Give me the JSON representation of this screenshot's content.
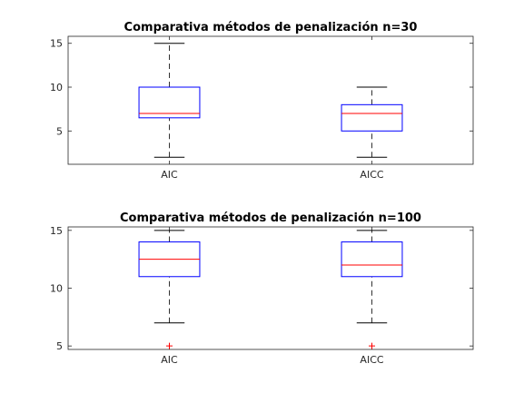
{
  "figure_background": "#ffffff",
  "chart_data": [
    {
      "type": "boxplot",
      "title": "Comparativa métodos de penalización n=30",
      "categories": [
        "AIC",
        "AICC"
      ],
      "ylim": [
        1.2,
        15.8
      ],
      "yticks": [
        5,
        10,
        15
      ],
      "ytick_labels": [
        "5",
        "10",
        "15"
      ],
      "grid": false,
      "series": [
        {
          "category": "AIC",
          "whisker_low": 2,
          "q1": 6.5,
          "median": 7,
          "q3": 10,
          "whisker_high": 15,
          "outliers": []
        },
        {
          "category": "AICC",
          "whisker_low": 2,
          "q1": 5,
          "median": 7,
          "q3": 8,
          "whisker_high": 10,
          "outliers": []
        }
      ]
    },
    {
      "type": "boxplot",
      "title": "Comparativa métodos de penalización n=100",
      "categories": [
        "AIC",
        "AICC"
      ],
      "ylim": [
        4.7,
        15.3
      ],
      "yticks": [
        5,
        10,
        15
      ],
      "ytick_labels": [
        "5",
        "10",
        "15"
      ],
      "grid": false,
      "series": [
        {
          "category": "AIC",
          "whisker_low": 7,
          "q1": 11,
          "median": 12.5,
          "q3": 14,
          "whisker_high": 15,
          "outliers": [
            5
          ]
        },
        {
          "category": "AICC",
          "whisker_low": 7,
          "q1": 11,
          "median": 12,
          "q3": 14,
          "whisker_high": 15,
          "outliers": [
            5
          ]
        }
      ]
    }
  ],
  "colors": {
    "box": "#0000ff",
    "median": "#ff0000",
    "whisker": "#000000",
    "outlier": "#ff0000",
    "axes": "#262626"
  }
}
